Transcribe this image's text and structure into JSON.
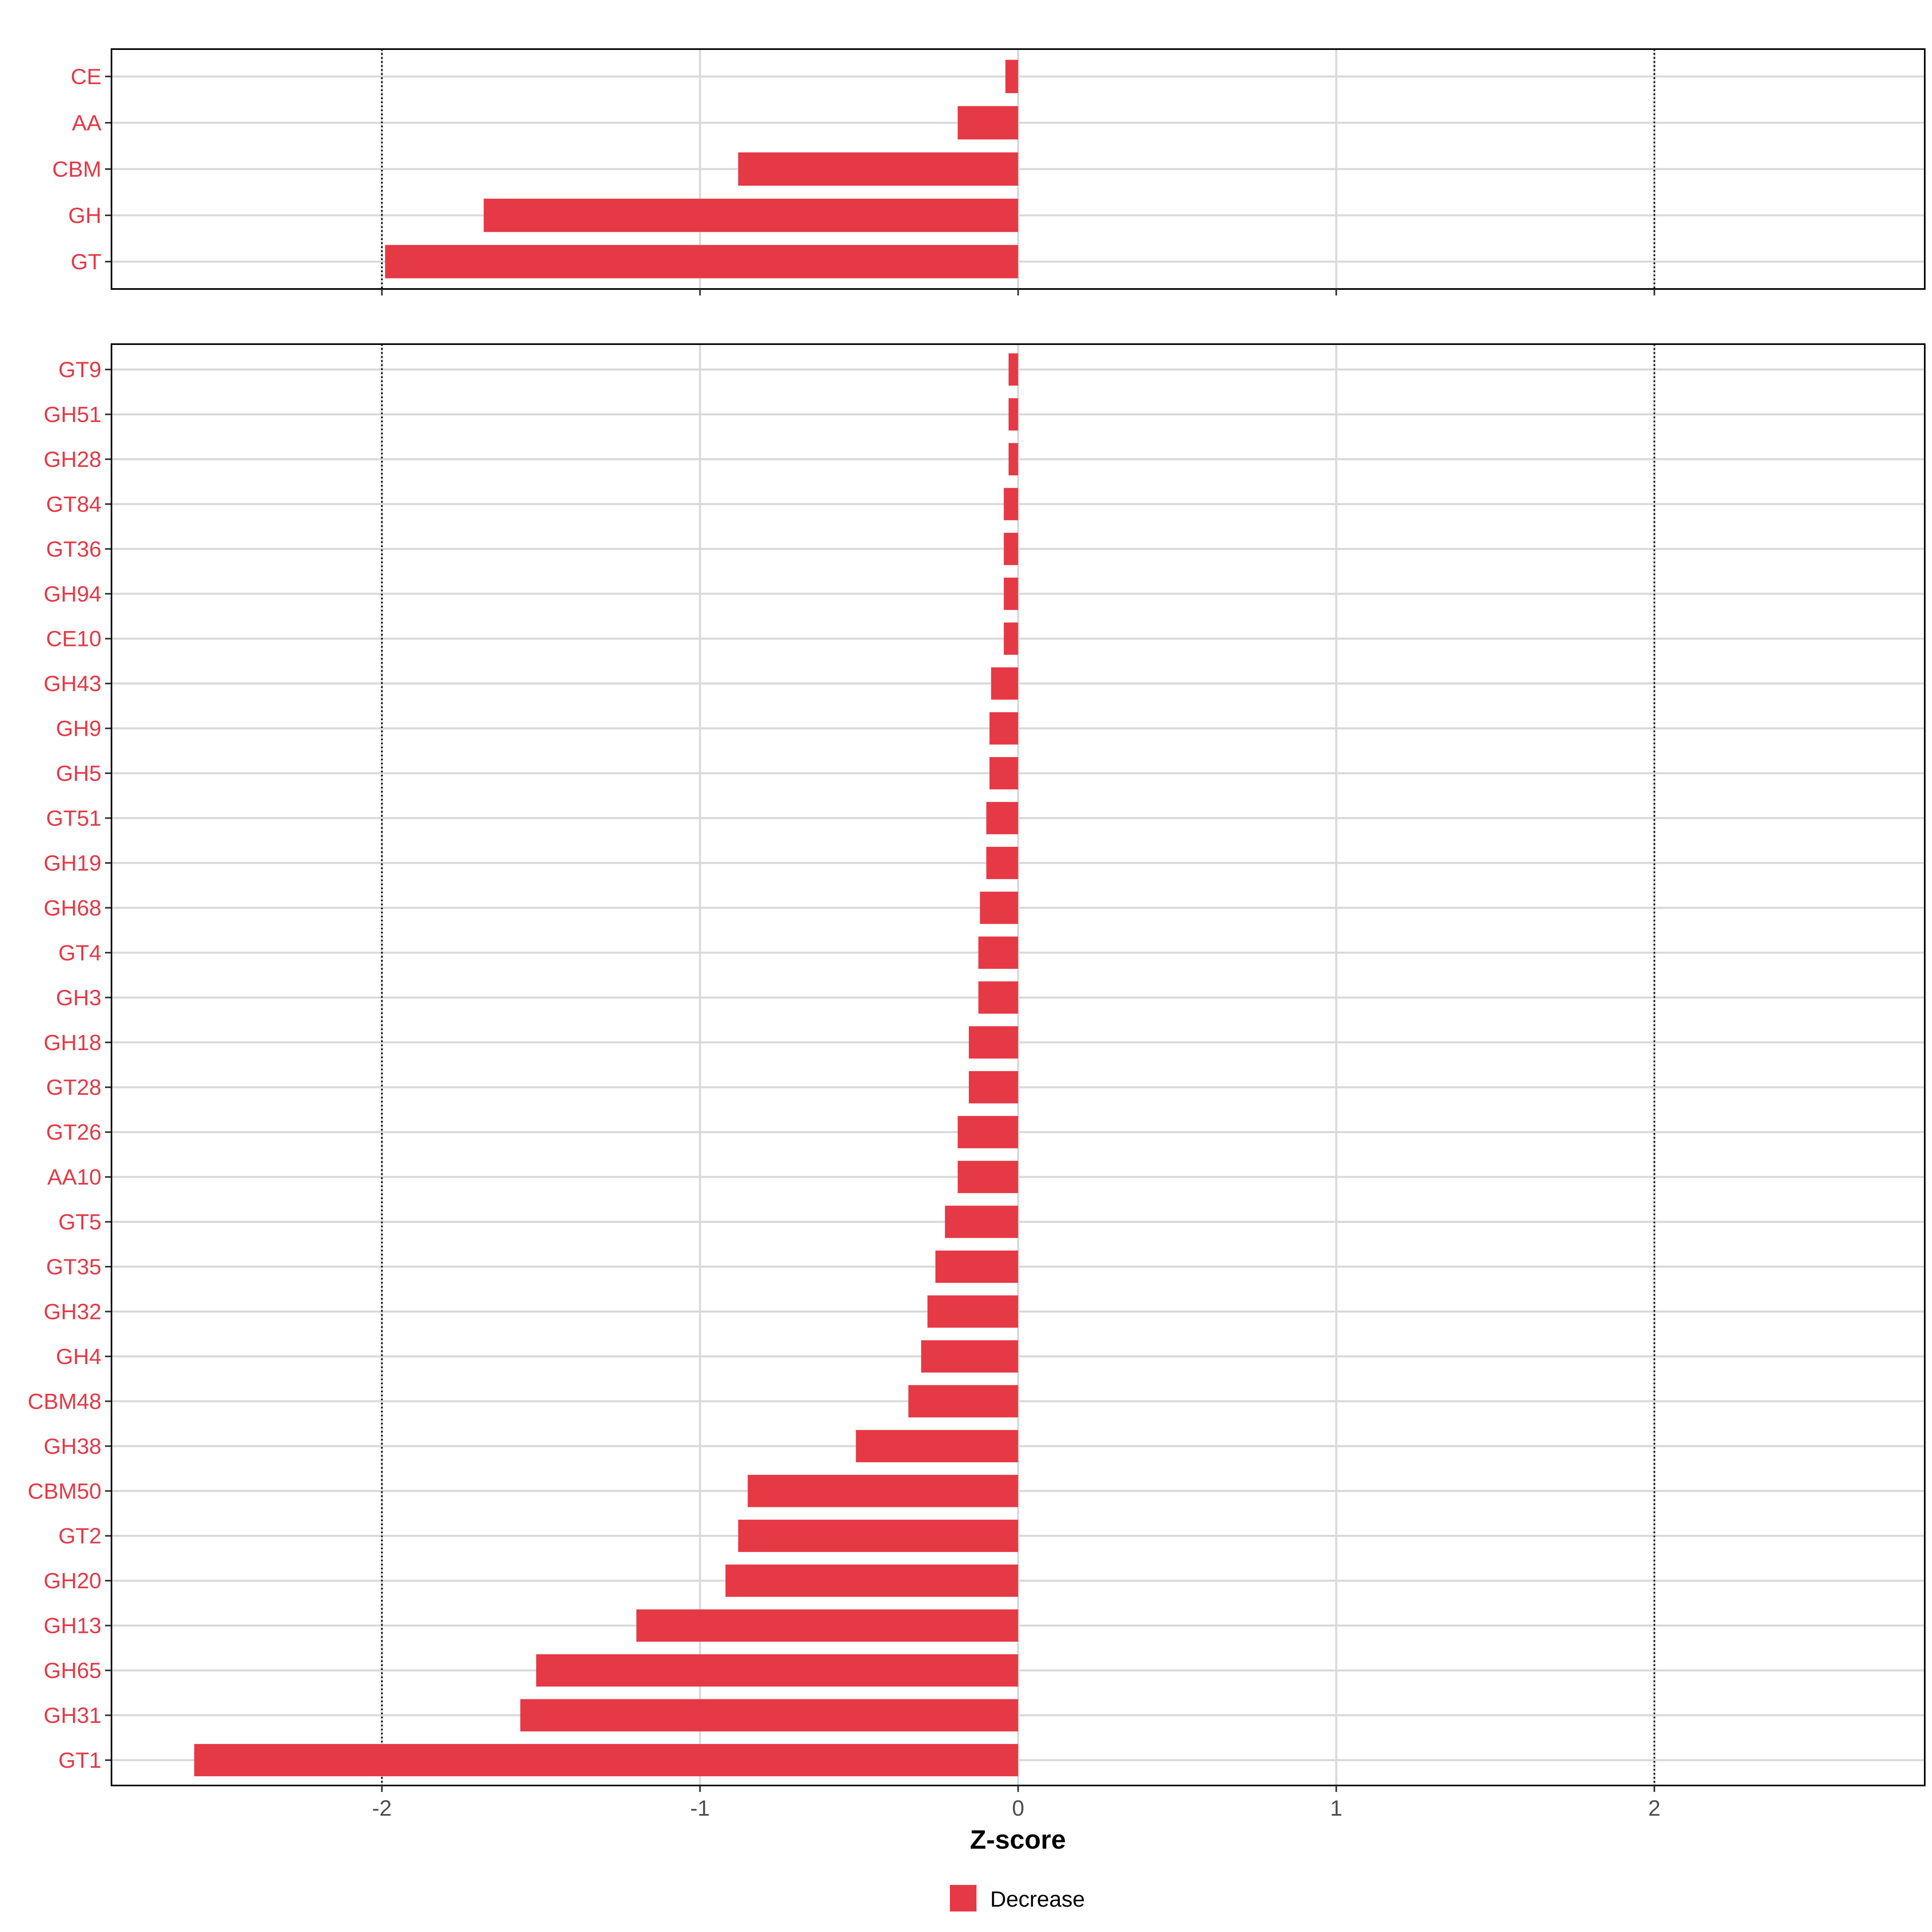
{
  "chart_data": [
    {
      "type": "bar",
      "orientation": "horizontal",
      "categories": [
        "CE",
        "AA",
        "CBM",
        "GH",
        "GT"
      ],
      "values": [
        -0.04,
        -0.19,
        -0.88,
        -1.68,
        -1.99
      ],
      "xlim": [
        -2.85,
        2.85
      ],
      "xticks": [
        -2,
        -1,
        0,
        1,
        2
      ],
      "reference_lines": [
        -2,
        2
      ],
      "grid": true
    },
    {
      "type": "bar",
      "orientation": "horizontal",
      "categories": [
        "GT9",
        "GH51",
        "GH28",
        "GT84",
        "GT36",
        "GH94",
        "CE10",
        "GH43",
        "GH9",
        "GH5",
        "GT51",
        "GH19",
        "GH68",
        "GT4",
        "GH3",
        "GH18",
        "GT28",
        "GT26",
        "AA10",
        "GT5",
        "GT35",
        "GH32",
        "GH4",
        "CBM48",
        "GH38",
        "CBM50",
        "GT2",
        "GH20",
        "GH13",
        "GH65",
        "GH31",
        "GT1"
      ],
      "values": [
        -0.03,
        -0.03,
        -0.03,
        -0.045,
        -0.045,
        -0.045,
        -0.045,
        -0.085,
        -0.09,
        -0.09,
        -0.1,
        -0.1,
        -0.12,
        -0.125,
        -0.125,
        -0.155,
        -0.155,
        -0.19,
        -0.19,
        -0.23,
        -0.26,
        -0.285,
        -0.305,
        -0.345,
        -0.51,
        -0.85,
        -0.88,
        -0.92,
        -1.2,
        -1.515,
        -1.565,
        -2.59
      ],
      "xlim": [
        -2.85,
        2.85
      ],
      "xticks": [
        -2,
        -1,
        0,
        1,
        2
      ],
      "xtick_labels": [
        "-2",
        "-1",
        "0",
        "1",
        "2"
      ],
      "reference_lines": [
        -2,
        2
      ],
      "grid": true,
      "xlabel": "Z-score"
    }
  ],
  "legend": {
    "label": "Decrease",
    "color": "#e63946",
    "position": "bottom"
  },
  "colors": {
    "bar": "#e63946",
    "label": "#e63946",
    "grid": "#d9d9d9",
    "axis": "#000000",
    "tick_text": "#4d4d4d"
  }
}
